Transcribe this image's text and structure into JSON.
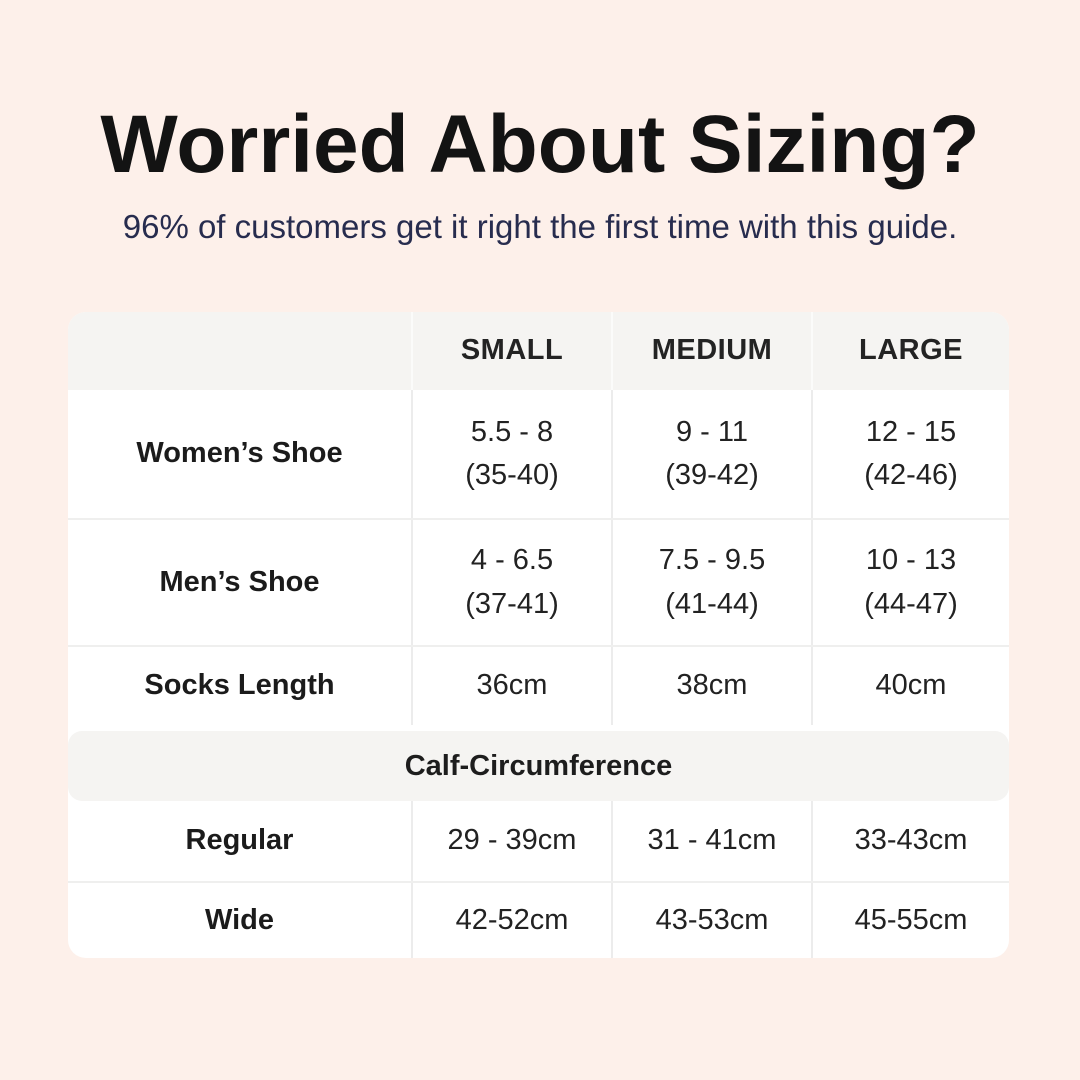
{
  "colors": {
    "background": "#fdf0ea",
    "table_background": "#ffffff",
    "band_background": "#f5f4f2",
    "title_text": "#131313",
    "subtitle_text": "#272c4e",
    "divider": "#ececec"
  },
  "header": {
    "title": "Worried About Sizing?",
    "subtitle": "96% of customers get it right the first time with this guide."
  },
  "table": {
    "headers": {
      "small": "SMALL",
      "medium": "MEDIUM",
      "large": "LARGE"
    },
    "rows": [
      {
        "label": "Women’s Shoe",
        "small_1": "5.5 - 8",
        "small_2": "(35-40)",
        "medium_1": "9 - 11",
        "medium_2": "(39-42)",
        "large_1": "12 - 15",
        "large_2": "(42-46)"
      },
      {
        "label": "Men’s Shoe",
        "small_1": "4 - 6.5",
        "small_2": "(37-41)",
        "medium_1": "7.5 - 9.5",
        "medium_2": "(41-44)",
        "large_1": "10 - 13",
        "large_2": "(44-47)"
      },
      {
        "label": "Socks Length",
        "small_1": "36cm",
        "medium_1": "38cm",
        "large_1": "40cm"
      }
    ],
    "section_header": "Calf-Circumference",
    "calf_rows": [
      {
        "label": "Regular",
        "small": "29 - 39cm",
        "medium": "31 - 41cm",
        "large": "33-43cm"
      },
      {
        "label": "Wide",
        "small": "42-52cm",
        "medium": "43-53cm",
        "large": "45-55cm"
      }
    ]
  },
  "chart_data": {
    "type": "table",
    "title": "Worried About Sizing?",
    "subtitle": "96% of customers get it right the first time with this guide.",
    "columns": [
      "",
      "SMALL",
      "MEDIUM",
      "LARGE"
    ],
    "rows": [
      [
        "Women’s Shoe",
        "5.5 - 8 (35-40)",
        "9 - 11 (39-42)",
        "12 - 15 (42-46)"
      ],
      [
        "Men’s Shoe",
        "4 - 6.5 (37-41)",
        "7.5 - 9.5 (41-44)",
        "10 - 13 (44-47)"
      ],
      [
        "Socks Length",
        "36cm",
        "38cm",
        "40cm"
      ],
      [
        "Calf-Circumference",
        "",
        "",
        ""
      ],
      [
        "Regular",
        "29 - 39cm",
        "31 - 41cm",
        "33-43cm"
      ],
      [
        "Wide",
        "42-52cm",
        "43-53cm",
        "45-55cm"
      ]
    ]
  }
}
